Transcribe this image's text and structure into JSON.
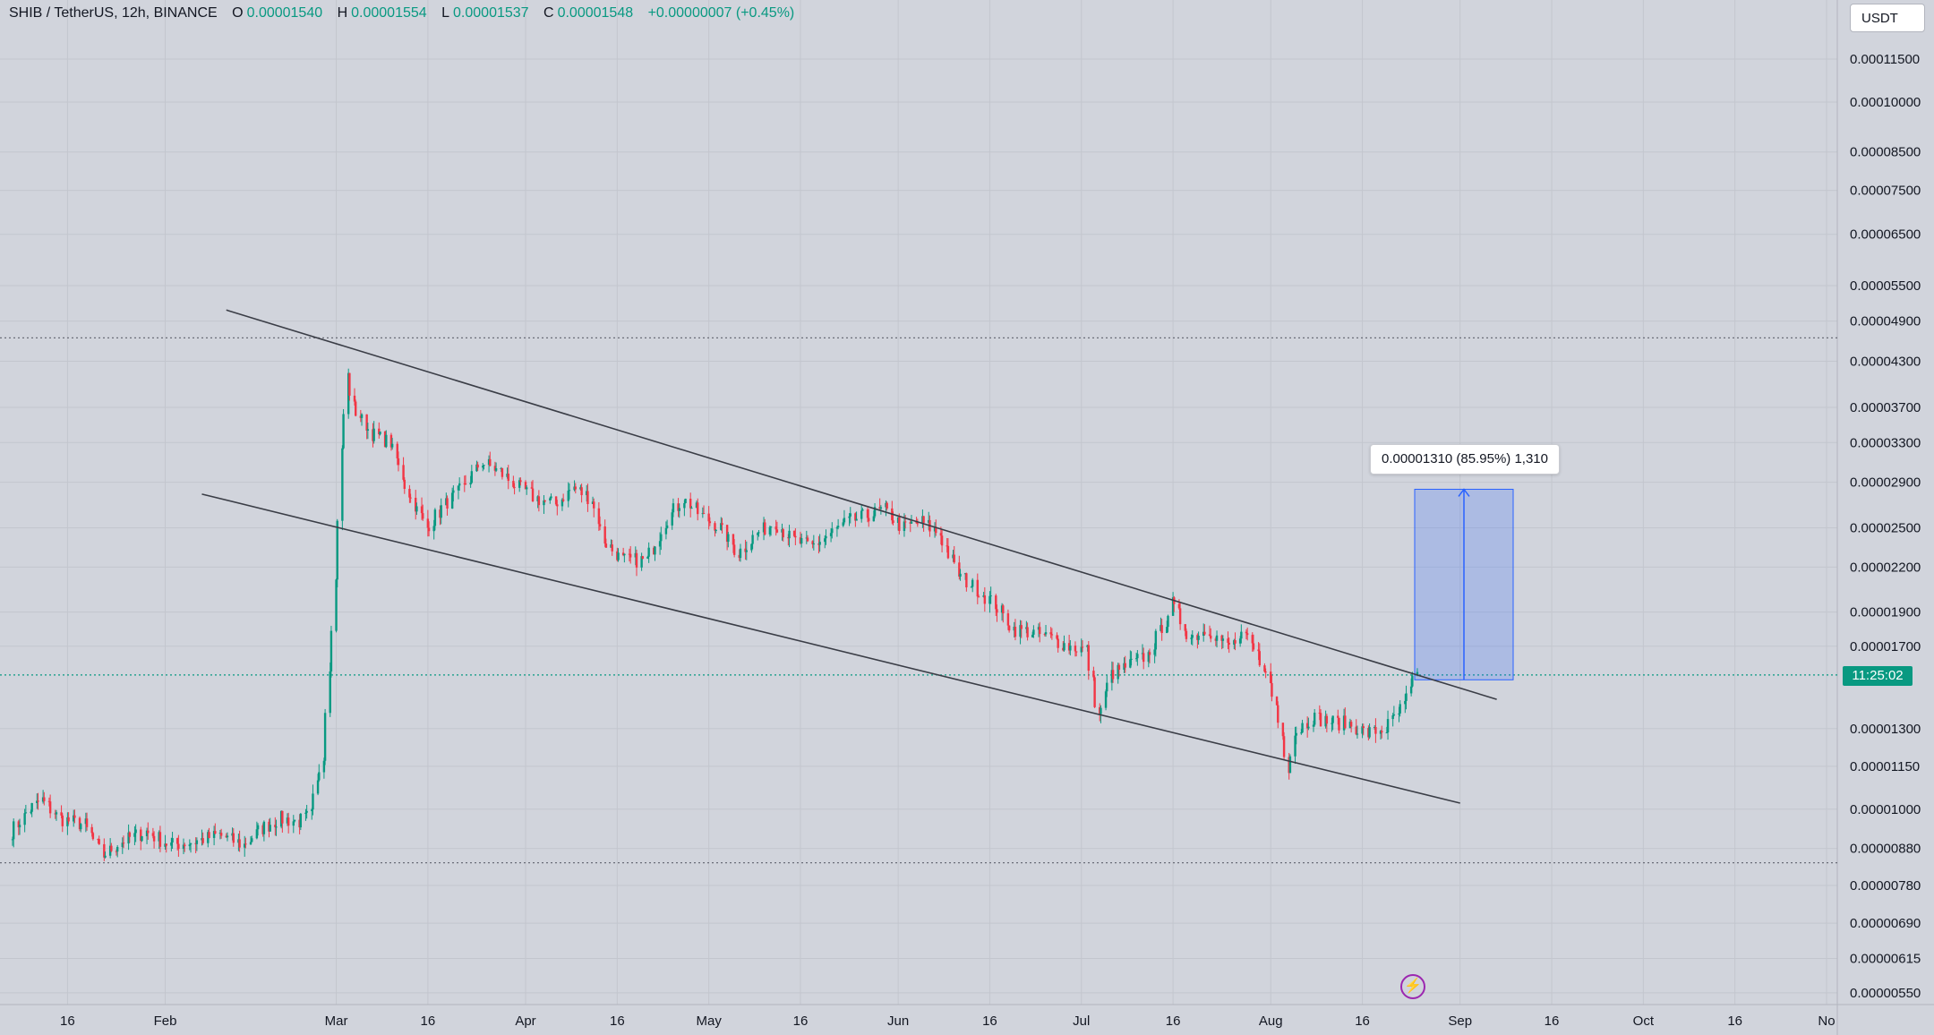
{
  "legend": {
    "title": "SHIB / TetherUS, 12h, BINANCE",
    "open_label": "O",
    "open": "0.00001540",
    "high_label": "H",
    "high": "0.00001554",
    "low_label": "L",
    "low": "0.00001537",
    "close_label": "C",
    "close": "0.00001548",
    "change": "+0.00000007 (+0.45%)"
  },
  "currency_button": "USDT",
  "countdown_badge": "11:25:02",
  "measure": {
    "label": "0.00001310 (85.95%) 1,310",
    "from_price": 1.524e-05,
    "to_price": 2.834e-05
  },
  "colors": {
    "background": "#d1d4dc",
    "up": "#089981",
    "down": "#f23645",
    "measure_fill": "#2962ff",
    "trendline": "#3a3d46"
  },
  "icons": {
    "alert": "flash-icon"
  },
  "chart_data": {
    "type": "candlestick",
    "symbol": "SHIB / TetherUS",
    "interval": "12h",
    "exchange": "BINANCE",
    "y_scale": "log",
    "ylim": [
      5.45e-06,
      0.0001205
    ],
    "xlim": [
      "2022-01-07",
      "2022-10-31"
    ],
    "y_ticks": [
      "0.00011500",
      "0.00010000",
      "0.00008500",
      "0.00007500",
      "0.00006500",
      "0.00005500",
      "0.00004900",
      "0.00004300",
      "0.00003700",
      "0.00003300",
      "0.00002900",
      "0.00002500",
      "0.00002200",
      "0.00001900",
      "0.00001700",
      "0.00001300",
      "0.00001150",
      "0.00001000",
      "0.00000880",
      "0.00000780",
      "0.00000690",
      "0.00000615",
      "0.00000550"
    ],
    "x_ticks": [
      {
        "label": "16",
        "date": "2022-01-16"
      },
      {
        "label": "Feb",
        "date": "2022-02-01"
      },
      {
        "label": "Mar",
        "date": "2022-03-01"
      },
      {
        "label": "16",
        "date": "2022-03-16"
      },
      {
        "label": "Apr",
        "date": "2022-04-01"
      },
      {
        "label": "16",
        "date": "2022-04-16"
      },
      {
        "label": "May",
        "date": "2022-05-01"
      },
      {
        "label": "16",
        "date": "2022-05-16"
      },
      {
        "label": "Jun",
        "date": "2022-06-01"
      },
      {
        "label": "16",
        "date": "2022-06-16"
      },
      {
        "label": "Jul",
        "date": "2022-07-01"
      },
      {
        "label": "16",
        "date": "2022-07-16"
      },
      {
        "label": "Aug",
        "date": "2022-08-01"
      },
      {
        "label": "16",
        "date": "2022-08-16"
      },
      {
        "label": "Sep",
        "date": "2022-09-01"
      },
      {
        "label": "16",
        "date": "2022-09-16"
      },
      {
        "label": "Oct",
        "date": "2022-10-01"
      },
      {
        "label": "16",
        "date": "2022-10-16"
      },
      {
        "label": "No",
        "date": "2022-10-31"
      }
    ],
    "close_path": [
      [
        "2022-01-07",
        9.3e-06
      ],
      [
        "2022-01-10",
        1e-05
      ],
      [
        "2022-01-12",
        1.03e-05
      ],
      [
        "2022-01-15",
        9.7e-06
      ],
      [
        "2022-01-19",
        9.5e-06
      ],
      [
        "2022-01-22",
        8.6e-06
      ],
      [
        "2022-01-25",
        9e-06
      ],
      [
        "2022-01-29",
        9.3e-06
      ],
      [
        "2022-02-02",
        8.9e-06
      ],
      [
        "2022-02-06",
        9e-06
      ],
      [
        "2022-02-10",
        9.2e-06
      ],
      [
        "2022-02-14",
        8.9e-06
      ],
      [
        "2022-02-17",
        9.4e-06
      ],
      [
        "2022-02-20",
        9.7e-06
      ],
      [
        "2022-02-23",
        9.6e-06
      ],
      [
        "2022-02-25",
        9.8e-06
      ],
      [
        "2022-02-27",
        1.2e-05
      ],
      [
        "2022-02-28",
        1.6e-05
      ],
      [
        "2022-03-01",
        2.1e-05
      ],
      [
        "2022-03-02",
        3.2e-05
      ],
      [
        "2022-03-03",
        4.1e-05
      ],
      [
        "2022-03-04",
        3.7e-05
      ],
      [
        "2022-03-07",
        3.4e-05
      ],
      [
        "2022-03-10",
        3.3e-05
      ],
      [
        "2022-03-13",
        2.8e-05
      ],
      [
        "2022-03-16",
        2.5e-05
      ],
      [
        "2022-03-19",
        2.7e-05
      ],
      [
        "2022-03-22",
        2.85e-05
      ],
      [
        "2022-03-25",
        3.1e-05
      ],
      [
        "2022-03-28",
        3e-05
      ],
      [
        "2022-03-31",
        2.85e-05
      ],
      [
        "2022-04-03",
        2.75e-05
      ],
      [
        "2022-04-06",
        2.7e-05
      ],
      [
        "2022-04-09",
        2.85e-05
      ],
      [
        "2022-04-12",
        2.75e-05
      ],
      [
        "2022-04-14",
        2.4e-05
      ],
      [
        "2022-04-17",
        2.25e-05
      ],
      [
        "2022-04-21",
        2.25e-05
      ],
      [
        "2022-04-24",
        2.55e-05
      ],
      [
        "2022-04-27",
        2.75e-05
      ],
      [
        "2022-04-30",
        2.6e-05
      ],
      [
        "2022-05-03",
        2.5e-05
      ],
      [
        "2022-05-06",
        2.3e-05
      ],
      [
        "2022-05-09",
        2.45e-05
      ],
      [
        "2022-05-12",
        2.55e-05
      ],
      [
        "2022-05-15",
        2.4e-05
      ],
      [
        "2022-05-18",
        2.35e-05
      ],
      [
        "2022-05-21",
        2.45e-05
      ],
      [
        "2022-05-24",
        2.55e-05
      ],
      [
        "2022-05-27",
        2.6e-05
      ],
      [
        "2022-05-30",
        2.65e-05
      ],
      [
        "2022-06-02",
        2.5e-05
      ],
      [
        "2022-06-05",
        2.55e-05
      ],
      [
        "2022-06-08",
        2.45e-05
      ],
      [
        "2022-06-11",
        2.15e-05
      ],
      [
        "2022-06-14",
        2.05e-05
      ],
      [
        "2022-06-17",
        1.95e-05
      ],
      [
        "2022-06-20",
        1.8e-05
      ],
      [
        "2022-06-23",
        1.78e-05
      ],
      [
        "2022-06-26",
        1.75e-05
      ],
      [
        "2022-06-29",
        1.7e-05
      ],
      [
        "2022-07-02",
        1.68e-05
      ],
      [
        "2022-07-04",
        1.35e-05
      ],
      [
        "2022-07-06",
        1.55e-05
      ],
      [
        "2022-07-09",
        1.6e-05
      ],
      [
        "2022-07-12",
        1.65e-05
      ],
      [
        "2022-07-15",
        1.85e-05
      ],
      [
        "2022-07-16",
        1.95e-05
      ],
      [
        "2022-07-19",
        1.75e-05
      ],
      [
        "2022-07-22",
        1.8e-05
      ],
      [
        "2022-07-25",
        1.7e-05
      ],
      [
        "2022-07-28",
        1.75e-05
      ],
      [
        "2022-07-31",
        1.6e-05
      ],
      [
        "2022-08-02",
        1.4e-05
      ],
      [
        "2022-08-04",
        1.15e-05
      ],
      [
        "2022-08-05",
        1.28e-05
      ],
      [
        "2022-08-08",
        1.35e-05
      ],
      [
        "2022-08-11",
        1.33e-05
      ],
      [
        "2022-08-14",
        1.32e-05
      ],
      [
        "2022-08-17",
        1.28e-05
      ],
      [
        "2022-08-20",
        1.3e-05
      ],
      [
        "2022-08-23",
        1.4e-05
      ],
      [
        "2022-08-25",
        1.548e-05
      ]
    ],
    "trendlines": [
      {
        "name": "upper",
        "from": [
          "2022-02-11",
          5.08e-05
        ],
        "to": [
          "2022-09-07",
          1.43e-05
        ]
      },
      {
        "name": "lower",
        "from": [
          "2022-02-07",
          2.79e-05
        ],
        "to": [
          "2022-09-01",
          1.02e-05
        ]
      }
    ],
    "horizontal_lines": [
      4.64e-05,
      8.4e-06,
      1.548e-05
    ]
  }
}
